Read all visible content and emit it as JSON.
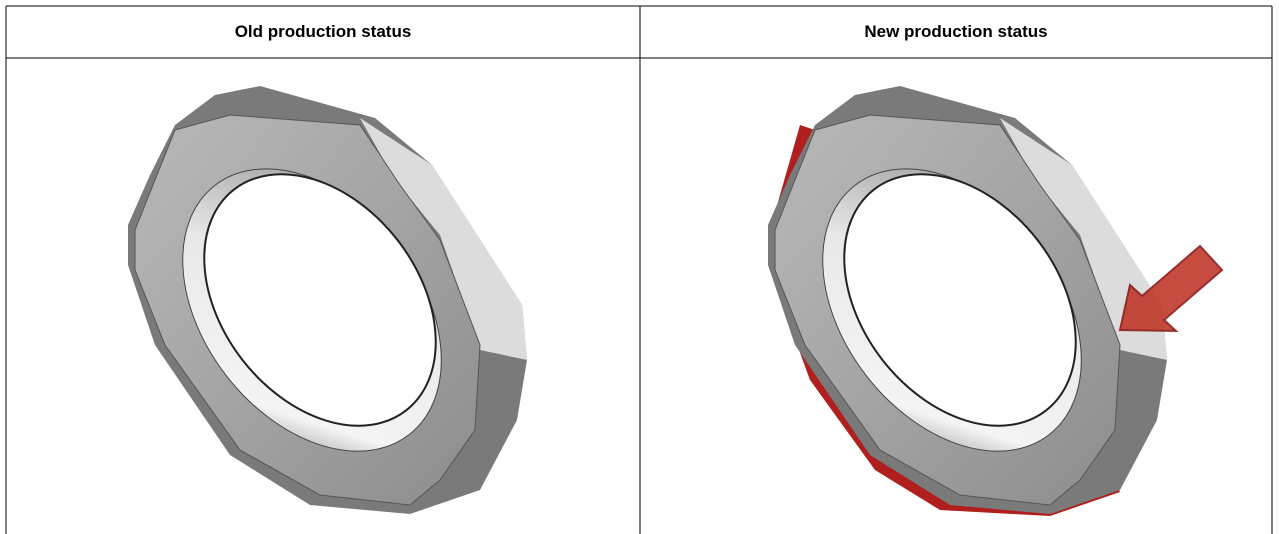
{
  "table": {
    "header": [
      "Old production status",
      "New production status"
    ]
  }
}
